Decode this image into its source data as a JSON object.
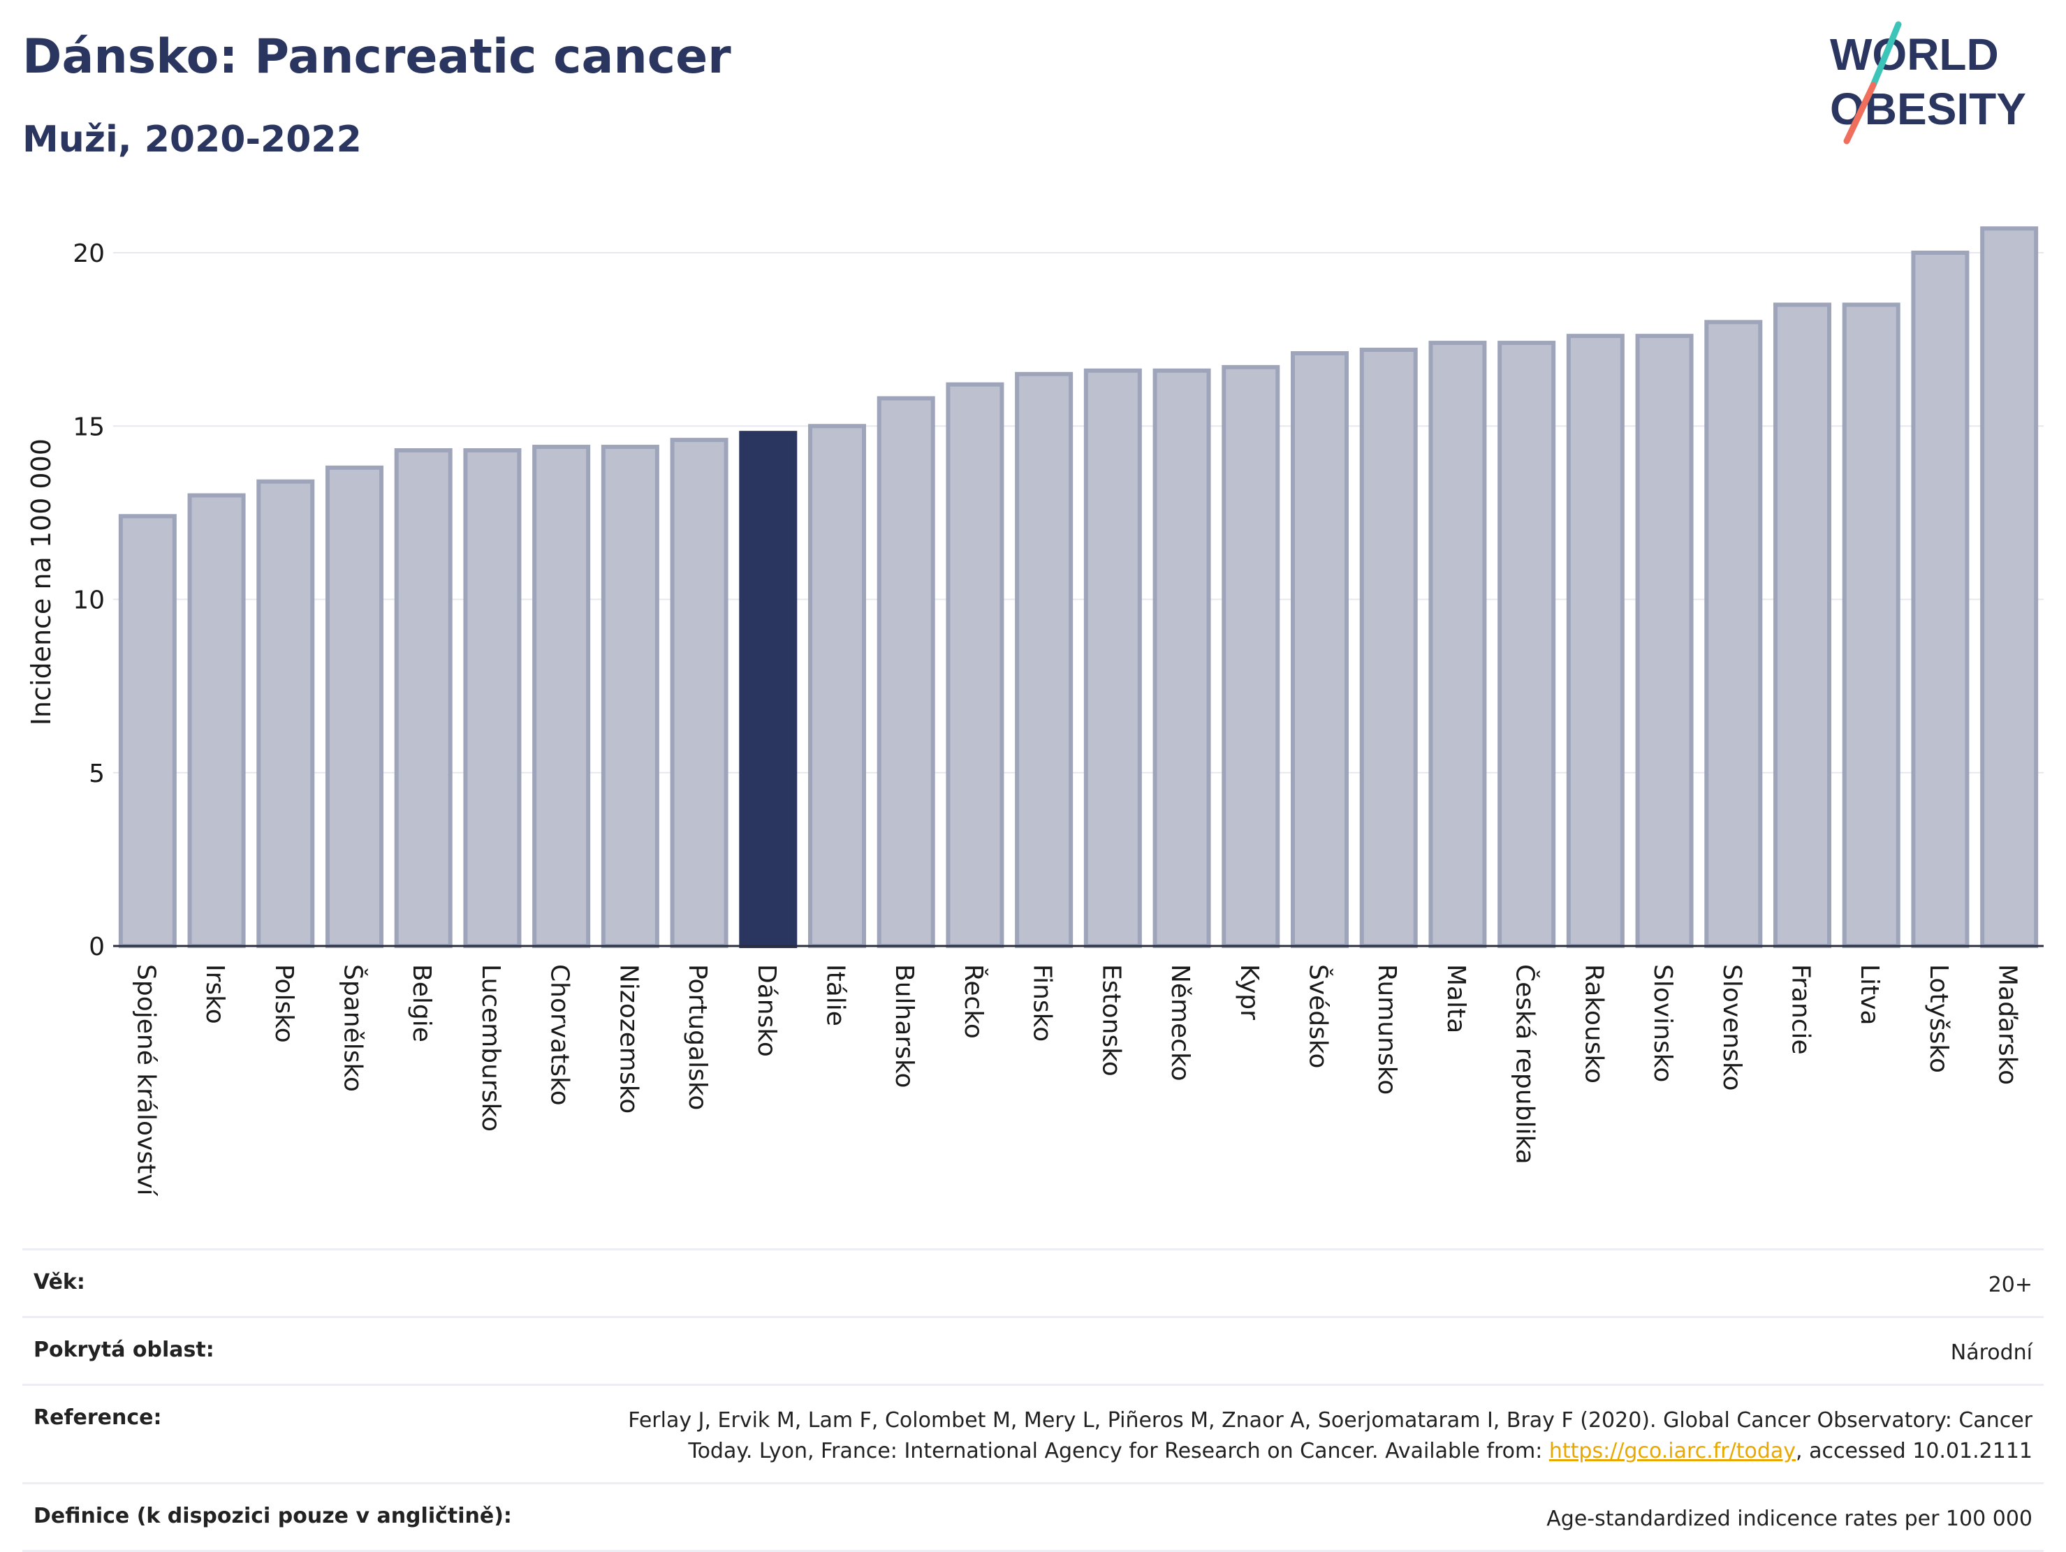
{
  "header": {
    "title": "Dánsko: Pancreatic cancer",
    "subtitle": "Muži, 2020-2022"
  },
  "logo": {
    "line1": "WORLD",
    "line2": "OBESITY",
    "accent_colors": [
      "#3cc4b9",
      "#ef6f5c"
    ]
  },
  "colors": {
    "bar": "#bdc1cf",
    "bar_border": "#9ea4ba",
    "highlight": "#2a3560",
    "grid": "#e6e8ef"
  },
  "chart_data": {
    "type": "bar",
    "title": "Dánsko: Pancreatic cancer",
    "subtitle": "Muži, 2020-2022",
    "ylabel": "Incidence na 100 000",
    "xlabel": "",
    "ylim": [
      0,
      21
    ],
    "yticks": [
      0,
      5,
      10,
      15,
      20
    ],
    "grid": true,
    "highlight": "Dánsko",
    "categories": [
      "Spojené království",
      "Irsko",
      "Polsko",
      "Španělsko",
      "Belgie",
      "Lucembursko",
      "Chorvatsko",
      "Nizozemsko",
      "Portugalsko",
      "Dánsko",
      "Itálie",
      "Bulharsko",
      "Řecko",
      "Finsko",
      "Estonsko",
      "Německo",
      "Kypr",
      "Švédsko",
      "Rumunsko",
      "Malta",
      "Česká republika",
      "Rakousko",
      "Slovinsko",
      "Slovensko",
      "Francie",
      "Litva",
      "Lotyšsko",
      "Maďarsko"
    ],
    "values": [
      12.4,
      13.0,
      13.4,
      13.8,
      14.3,
      14.3,
      14.4,
      14.4,
      14.6,
      14.8,
      15.0,
      15.8,
      16.2,
      16.5,
      16.6,
      16.6,
      16.7,
      17.1,
      17.2,
      17.4,
      17.4,
      17.6,
      17.6,
      18.0,
      18.5,
      18.5,
      20.0,
      20.7
    ]
  },
  "info": {
    "age_label": "Věk:",
    "age_value": "20+",
    "area_label": "Pokrytá oblast:",
    "area_value": "Národní",
    "reference_label": "Reference:",
    "reference_line1": "Ferlay J, Ervik M, Lam F, Colombet M, Mery L, Piñeros M, Znaor A, Soerjomataram I, Bray F (2020). Global Cancer Observatory: Cancer",
    "reference_line2_pre": "Today. Lyon, France: International Agency for Research on Cancer. Available from: ",
    "reference_link": "https://gco.iarc.fr/today",
    "reference_line2_post": ", accessed 10.01.2111",
    "definition_label": "Definice (k dispozici pouze v angličtině):",
    "definition_value": "Age-standardized indicence rates per 100 000"
  }
}
